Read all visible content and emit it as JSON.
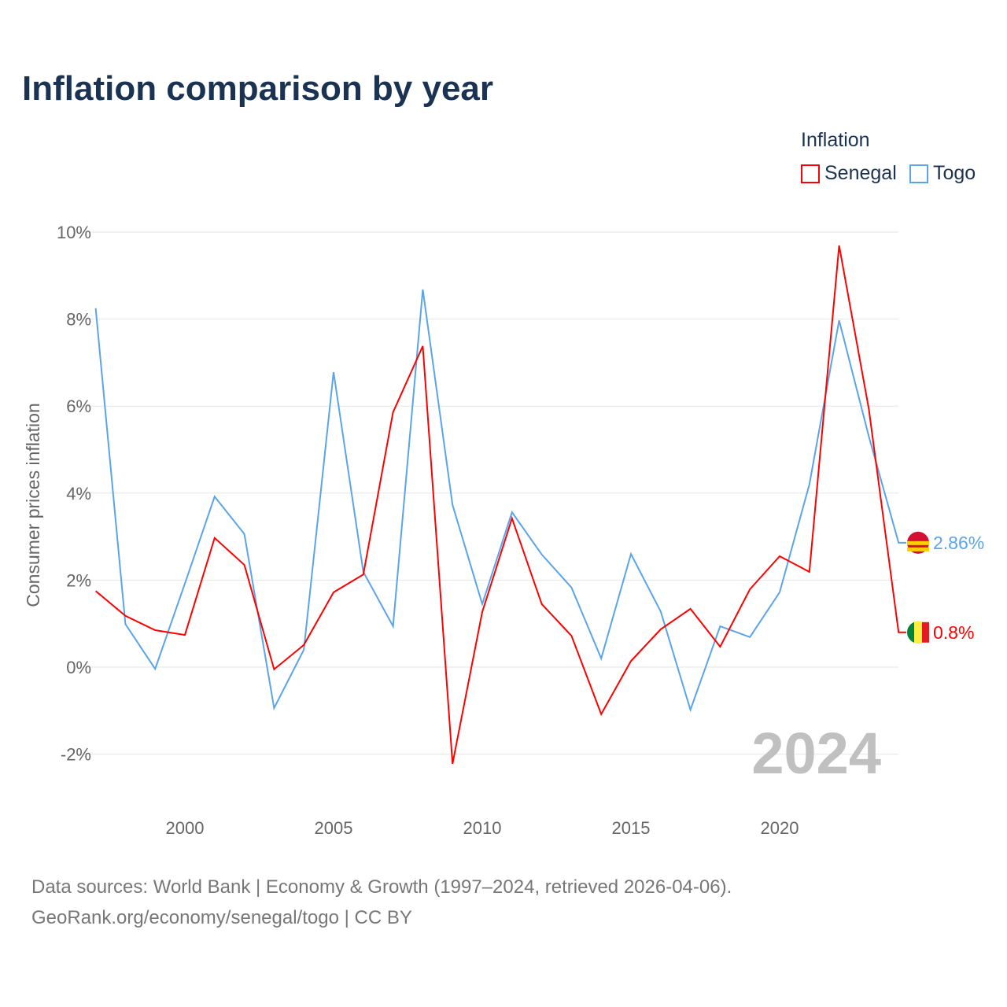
{
  "chart_data": {
    "type": "line",
    "title": "Inflation comparison by year",
    "ylabel": "Consumer prices inflation",
    "xlabel": "",
    "legend_title": "Inflation",
    "legend_position": "top-right",
    "x": [
      1997,
      1998,
      1999,
      2000,
      2001,
      2002,
      2003,
      2004,
      2005,
      2006,
      2007,
      2008,
      2009,
      2010,
      2011,
      2012,
      2013,
      2014,
      2015,
      2016,
      2017,
      2018,
      2019,
      2020,
      2021,
      2022,
      2023,
      2024
    ],
    "series": [
      {
        "name": "Senegal",
        "color": "#ff0000",
        "end_label": "0.8%",
        "values": [
          1.75,
          1.18,
          0.85,
          0.74,
          2.97,
          2.35,
          -0.05,
          0.51,
          1.72,
          2.13,
          5.86,
          7.38,
          -2.22,
          1.27,
          3.42,
          1.45,
          0.72,
          -1.08,
          0.14,
          0.87,
          1.34,
          0.47,
          1.79,
          2.55,
          2.19,
          9.69,
          5.93,
          0.8
        ]
      },
      {
        "name": "Togo",
        "color": "#5ba4ea",
        "end_label": "2.86%",
        "values": [
          8.25,
          0.99,
          -0.04,
          1.92,
          3.92,
          3.06,
          -0.94,
          0.4,
          6.78,
          2.19,
          0.94,
          8.68,
          3.73,
          1.45,
          3.56,
          2.59,
          1.83,
          0.2,
          2.6,
          1.28,
          -0.98,
          0.94,
          0.69,
          1.72,
          4.2,
          7.97,
          5.3,
          2.86
        ]
      }
    ],
    "ylim": [
      -2.6,
      10
    ],
    "yticks": [
      -2,
      0,
      2,
      4,
      6,
      8,
      10
    ],
    "ytick_labels": [
      "-2%",
      "0%",
      "2%",
      "4%",
      "6%",
      "8%",
      "10%"
    ],
    "xticks": [
      2000,
      2005,
      2010,
      2015,
      2020
    ],
    "xtick_labels": [
      "2000",
      "2005",
      "2010",
      "2015",
      "2020"
    ],
    "grid": true,
    "watermark_year": "2024"
  },
  "source_line1": "Data sources: World Bank | Economy & Growth (1997–2024, retrieved 2026-04-06).",
  "source_line2": "GeoRank.org/economy/senegal/togo | CC BY"
}
